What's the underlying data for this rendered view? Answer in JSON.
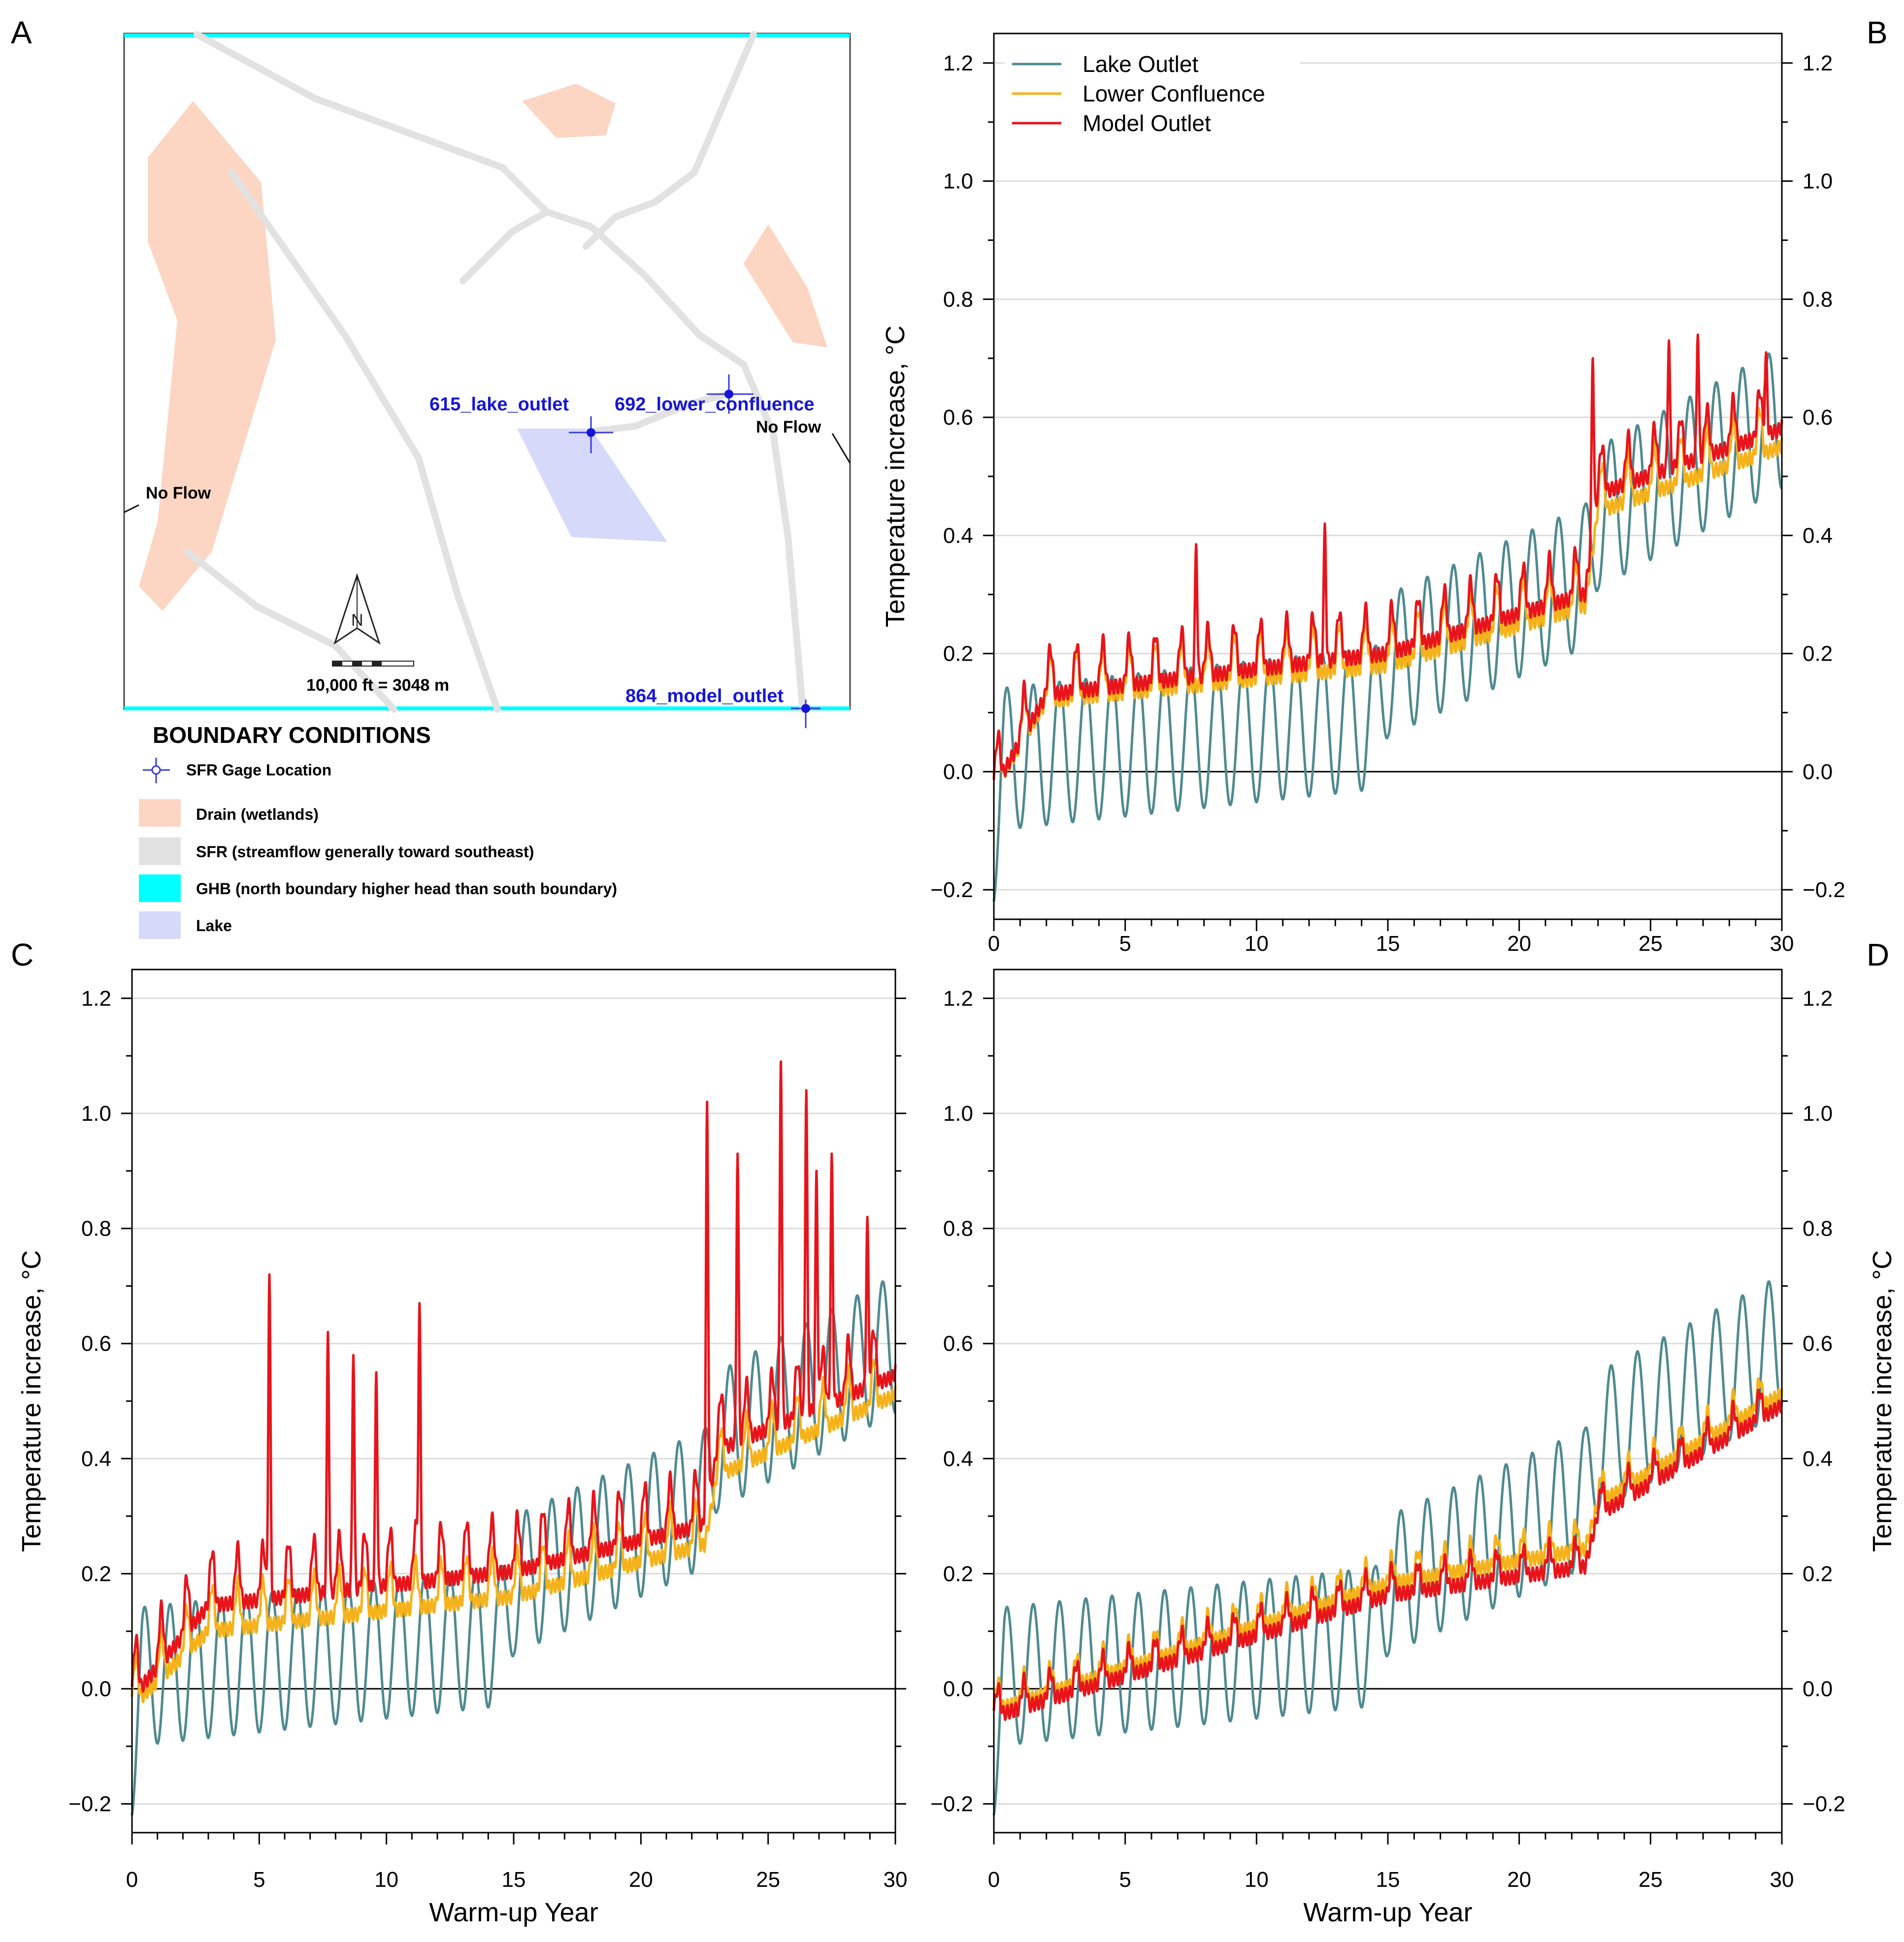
{
  "panels": {
    "a": "A",
    "b": "B",
    "c": "C",
    "d": "D"
  },
  "map": {
    "gage_labels": [
      "615_lake_outlet",
      "692_lower_confluence",
      "864_model_outlet"
    ],
    "no_flow_west": "No Flow",
    "no_flow_east": "No Flow",
    "north_letter": "N",
    "scale_text": "10,000 ft = 3048 m",
    "legend_title": "BOUNDARY CONDITIONS",
    "legend_items": [
      {
        "label": "SFR Gage Location",
        "color": "#3a3ad9"
      },
      {
        "label": "Drain (wetlands)",
        "color": "#fcd5c3"
      },
      {
        "label": "SFR (streamflow generally toward southeast)",
        "color": "#e2e2e2"
      },
      {
        "label": "GHB (north boundary higher head than south boundary)",
        "color": "#00ffff"
      },
      {
        "label": "Lake",
        "color": "#d7d9fb"
      }
    ]
  },
  "axes": {
    "ylabel": "Temperature increase, °C",
    "xlabel": "Warm-up Year"
  },
  "chart_data": [
    {
      "panel": "B",
      "type": "line",
      "xlim": [
        0,
        30
      ],
      "ylim": [
        -0.25,
        1.25
      ],
      "xticks": [
        "0",
        "5",
        "10",
        "15",
        "20",
        "25",
        "30"
      ],
      "yticks": [
        "−0.2",
        "0.0",
        "0.2",
        "0.4",
        "0.6",
        "0.8",
        "1.0",
        "1.2"
      ],
      "xlabel": "",
      "ylabel": "Temperature increase, °C",
      "legend_position": "top-left",
      "series": [
        {
          "name": "Lake Outlet",
          "color": "#4e8a8f",
          "trend_x": [
            0,
            14.5,
            15,
            22.5,
            23,
            30
          ],
          "trend_y": [
            0.02,
            0.09,
            0.18,
            0.33,
            0.43,
            0.6
          ],
          "amplitude": 0.12,
          "annual_peaks": "seasonal, ~1 cycle per year"
        },
        {
          "name": "Lower Confluence",
          "color": "#f5b21a",
          "trend_x": [
            0,
            2,
            15,
            22.5,
            23,
            30
          ],
          "trend_y": [
            0.0,
            0.15,
            0.21,
            0.31,
            0.47,
            0.58
          ],
          "amplitude": 0.05
        },
        {
          "name": "Model Outlet",
          "color": "#e8141b",
          "trend_x": [
            0,
            2,
            15,
            22.5,
            23,
            30
          ],
          "trend_y": [
            0.0,
            0.16,
            0.23,
            0.33,
            0.5,
            0.61
          ],
          "amplitude": 0.05,
          "peaks": [
            [
              7.7,
              0.385
            ],
            [
              12.6,
              0.42
            ],
            [
              22.8,
              0.7
            ],
            [
              25.7,
              0.73
            ],
            [
              26.8,
              0.74
            ],
            [
              29.4,
              0.71
            ]
          ]
        }
      ]
    },
    {
      "panel": "C",
      "type": "line",
      "xlim": [
        0,
        30
      ],
      "ylim": [
        -0.25,
        1.25
      ],
      "xticks": [
        "0",
        "5",
        "10",
        "15",
        "20",
        "25",
        "30"
      ],
      "yticks": [
        "−0.2",
        "0.0",
        "0.2",
        "0.4",
        "0.6",
        "0.8",
        "1.0",
        "1.2"
      ],
      "xlabel": "Warm-up Year",
      "ylabel": "Temperature increase, °C",
      "series": [
        {
          "name": "Lake Outlet",
          "color": "#4e8a8f",
          "trend_x": [
            0,
            14.5,
            15,
            22.5,
            23,
            30
          ],
          "trend_y": [
            0.02,
            0.09,
            0.18,
            0.33,
            0.43,
            0.6
          ],
          "amplitude": 0.12
        },
        {
          "name": "Lower Confluence",
          "color": "#f5b21a",
          "trend_x": [
            0,
            3,
            15,
            22.5,
            23,
            30
          ],
          "trend_y": [
            0.0,
            0.13,
            0.19,
            0.28,
            0.4,
            0.54
          ],
          "amplitude": 0.05
        },
        {
          "name": "Model Outlet",
          "color": "#e8141b",
          "trend_x": [
            0,
            3,
            15,
            22.5,
            23,
            30
          ],
          "trend_y": [
            0.02,
            0.18,
            0.24,
            0.32,
            0.45,
            0.58
          ],
          "amplitude": 0.06,
          "peaks": [
            [
              5.4,
              0.72
            ],
            [
              7.7,
              0.62
            ],
            [
              8.7,
              0.58
            ],
            [
              9.6,
              0.55
            ],
            [
              11.3,
              0.67
            ],
            [
              22.6,
              1.02
            ],
            [
              23.8,
              0.93
            ],
            [
              25.5,
              1.09
            ],
            [
              26.5,
              1.04
            ],
            [
              26.9,
              0.9
            ],
            [
              27.5,
              0.93
            ],
            [
              28.9,
              0.82
            ]
          ]
        }
      ]
    },
    {
      "panel": "D",
      "type": "line",
      "xlim": [
        0,
        30
      ],
      "ylim": [
        -0.25,
        1.25
      ],
      "xticks": [
        "0",
        "5",
        "10",
        "15",
        "20",
        "25",
        "30"
      ],
      "yticks": [
        "−0.2",
        "0.0",
        "0.2",
        "0.4",
        "0.6",
        "0.8",
        "1.0",
        "1.2"
      ],
      "xlabel": "Warm-up Year",
      "ylabel": "Temperature increase, °C",
      "series": [
        {
          "name": "Lake Outlet",
          "color": "#4e8a8f",
          "trend_x": [
            0,
            14.5,
            15,
            22.5,
            23,
            30
          ],
          "trend_y": [
            0.02,
            0.09,
            0.18,
            0.33,
            0.43,
            0.6
          ],
          "amplitude": 0.12
        },
        {
          "name": "Lower Confluence",
          "color": "#f5b21a",
          "trend_x": [
            0,
            15,
            22.5,
            23,
            30
          ],
          "trend_y": [
            -0.02,
            0.2,
            0.26,
            0.34,
            0.53
          ],
          "amplitude": 0.03
        },
        {
          "name": "Model Outlet",
          "color": "#e8141b",
          "trend_x": [
            0,
            15,
            22.5,
            23,
            30
          ],
          "trend_y": [
            -0.03,
            0.18,
            0.23,
            0.32,
            0.51
          ],
          "amplitude": 0.03
        }
      ]
    }
  ]
}
